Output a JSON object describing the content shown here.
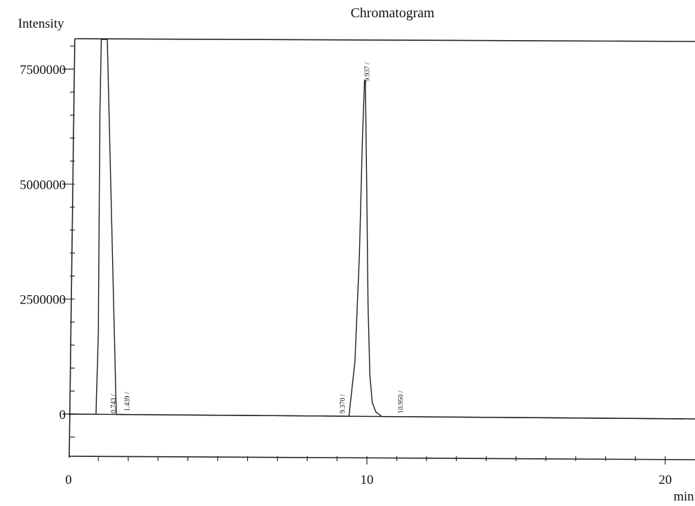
{
  "chart_data": {
    "type": "line",
    "title": "Chromatogram",
    "ylabel": "Intensity",
    "xlabel": "min",
    "x_ticks": [
      0,
      10,
      20
    ],
    "y_ticks": [
      0,
      2500000,
      5000000,
      7500000
    ],
    "y_tick_labels": [
      "0",
      "2500000",
      "5000000",
      "7500000"
    ],
    "xlim": [
      0,
      20.6
    ],
    "ylim": [
      -900000,
      8200000
    ],
    "grid": false,
    "peaks": [
      {
        "label": "0.743",
        "rt": 0.743
      },
      {
        "label": "1.439",
        "rt": 1.439
      },
      {
        "label": "9.370",
        "rt": 9.37
      },
      {
        "label": "9.937",
        "rt": 9.937
      },
      {
        "label": "10.950",
        "rt": 10.95
      }
    ],
    "series": [
      {
        "x": [
          0.0,
          0.74,
          0.86,
          0.92,
          1.0,
          1.05,
          1.1,
          1.18,
          1.3,
          1.6,
          2.5,
          4.0,
          6.0,
          8.0,
          9.2,
          9.4,
          9.6,
          9.75,
          9.85,
          9.92,
          9.95,
          9.99,
          10.04,
          10.1,
          10.18,
          10.3,
          10.5,
          11.0,
          13.0,
          16.0,
          20.6
        ],
        "y": [
          0,
          0,
          0,
          0,
          1800000,
          6500000,
          8200000,
          8200000,
          8200000,
          0,
          0,
          0,
          0,
          0,
          0,
          0,
          1200000,
          3500000,
          6000000,
          7300000,
          7300000,
          5200000,
          2400000,
          900000,
          300000,
          100000,
          0,
          0,
          0,
          0,
          0
        ]
      }
    ]
  }
}
